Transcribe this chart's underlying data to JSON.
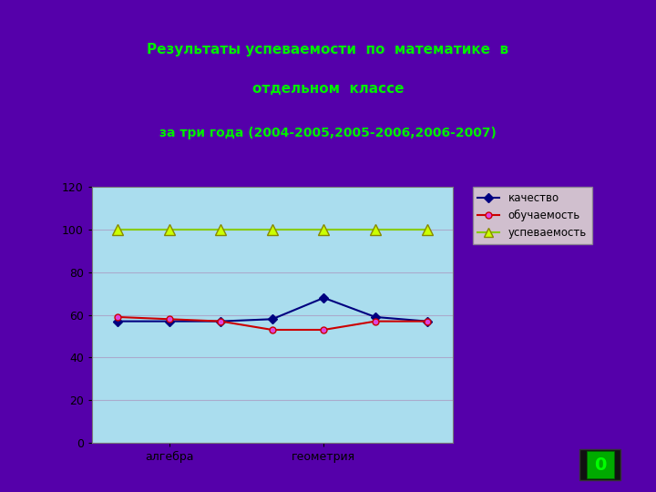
{
  "title_line1": "Результаты успеваемости  по  математике  в",
  "title_line2": "отдельном  классе",
  "title_line3": "за три года (2004-2005,2005-2006,2006-2007)",
  "title_color": "#00ee00",
  "title_box_color": "#ffffff",
  "bg_outer": "#5500aa",
  "bg_chart_outer": "#ffaa00",
  "bg_chart_inner": "#aaddee",
  "x_positions": [
    0,
    1,
    2,
    3,
    4,
    5,
    6
  ],
  "kachestvo": [
    57,
    57,
    57,
    58,
    68,
    59,
    57
  ],
  "obuchaemost": [
    59,
    58,
    57,
    53,
    53,
    57,
    57
  ],
  "uspevaemost": [
    100,
    100,
    100,
    100,
    100,
    100,
    100
  ],
  "kachestvo_color": "#000080",
  "obuchaemost_color": "#cc0000",
  "uspevaemost_color": "#88cc00",
  "ylim": [
    0,
    120
  ],
  "yticks": [
    0,
    20,
    40,
    60,
    80,
    100,
    120
  ],
  "legend_labels": [
    "качество",
    "обучаемость",
    "успеваемость"
  ],
  "legend_bg": "#f0f0d8",
  "marker_obuch_face": "#dd44dd",
  "marker_usp_face": "#ccff00",
  "marker_usp_edge": "#888800"
}
